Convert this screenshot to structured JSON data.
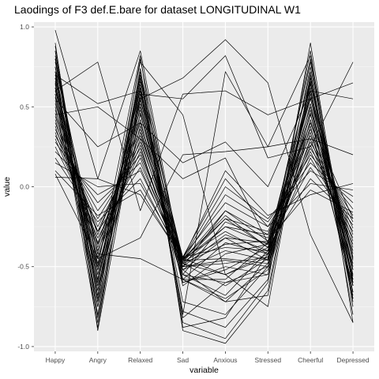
{
  "chart_data": {
    "type": "line",
    "title": "Laodings of F3 def.E.bare for dataset LONGITUDINAL W1",
    "xlabel": "variable",
    "ylabel": "value",
    "categories": [
      "Happy",
      "Angry",
      "Relaxed",
      "Sad",
      "Anxious",
      "Stressed",
      "Cheerful",
      "Depressed"
    ],
    "ylim": [
      -1.03,
      1.03
    ],
    "yticks": [
      1.0,
      0.5,
      0.0,
      -0.5,
      -1.0
    ],
    "ytick_labels": [
      "1.0",
      "0.5",
      "0.0",
      "-0.5",
      "-1.0"
    ],
    "grid": true,
    "legend": "none",
    "colors": {
      "panel": "#ebebeb",
      "grid_major": "#ffffff",
      "grid_minor": "#f5f5f5",
      "line": "#000000"
    },
    "series": [
      {
        "values": [
          0.98,
          0.05,
          0.85,
          -0.52,
          -0.72,
          -0.48,
          0.85,
          -0.85
        ]
      },
      {
        "values": [
          0.88,
          -0.72,
          0.8,
          -0.55,
          -0.68,
          -0.4,
          0.78,
          -0.62
        ]
      },
      {
        "values": [
          0.85,
          -0.65,
          0.72,
          -0.48,
          -0.62,
          -0.45,
          0.72,
          -0.7
        ]
      },
      {
        "values": [
          0.82,
          -0.8,
          0.7,
          -0.58,
          -0.58,
          -0.35,
          0.68,
          -0.55
        ]
      },
      {
        "values": [
          0.78,
          -0.55,
          0.66,
          -0.45,
          -0.55,
          -0.42,
          0.64,
          -0.5
        ]
      },
      {
        "values": [
          0.75,
          -0.85,
          0.62,
          -0.6,
          -0.52,
          -0.38,
          0.62,
          -0.72
        ]
      },
      {
        "values": [
          0.72,
          -0.48,
          0.6,
          -0.5,
          -0.48,
          -0.44,
          0.6,
          -0.46
        ]
      },
      {
        "values": [
          0.7,
          -0.6,
          0.58,
          -0.46,
          -0.45,
          -0.48,
          0.58,
          -0.58
        ]
      },
      {
        "values": [
          0.68,
          -0.7,
          0.56,
          -0.62,
          -0.42,
          -0.36,
          0.56,
          -0.66
        ]
      },
      {
        "values": [
          0.66,
          -0.42,
          0.54,
          -0.44,
          -0.38,
          -0.4,
          0.55,
          -0.42
        ]
      },
      {
        "values": [
          0.64,
          -0.52,
          0.52,
          -0.55,
          -0.6,
          -0.5,
          0.52,
          -0.6
        ]
      },
      {
        "values": [
          0.62,
          -0.65,
          0.5,
          -0.48,
          -0.36,
          -0.34,
          0.5,
          -0.52
        ]
      },
      {
        "values": [
          0.6,
          -0.38,
          0.48,
          -0.52,
          -0.32,
          -0.46,
          0.48,
          -0.44
        ]
      },
      {
        "values": [
          0.58,
          -0.75,
          0.46,
          -0.58,
          -0.7,
          -0.52,
          0.46,
          -0.68
        ]
      },
      {
        "values": [
          0.56,
          -0.45,
          0.45,
          -0.45,
          -0.28,
          -0.42,
          0.45,
          -0.38
        ]
      },
      {
        "values": [
          0.54,
          -0.58,
          0.42,
          -0.6,
          -0.5,
          -0.55,
          0.42,
          -0.56
        ]
      },
      {
        "values": [
          0.52,
          -0.35,
          0.4,
          -0.46,
          -0.25,
          -0.3,
          0.4,
          -0.34
        ]
      },
      {
        "values": [
          0.5,
          -0.62,
          0.38,
          -0.5,
          -0.46,
          -0.5,
          0.38,
          -0.62
        ]
      },
      {
        "values": [
          0.48,
          -0.3,
          0.36,
          -0.55,
          -0.22,
          -0.32,
          0.36,
          -0.3
        ]
      },
      {
        "values": [
          0.46,
          -0.5,
          0.34,
          -0.48,
          -0.55,
          -0.44,
          0.34,
          -0.48
        ]
      },
      {
        "values": [
          0.44,
          -0.28,
          0.32,
          -0.45,
          -0.2,
          -0.28,
          0.32,
          -0.26
        ]
      },
      {
        "values": [
          0.42,
          -0.44,
          0.3,
          -0.52,
          -0.4,
          -0.46,
          0.3,
          -0.4
        ]
      },
      {
        "values": [
          0.4,
          -0.25,
          0.28,
          -0.46,
          -0.18,
          -0.38,
          0.28,
          -0.22
        ]
      },
      {
        "values": [
          0.38,
          -0.4,
          0.26,
          -0.58,
          -0.35,
          -0.42,
          0.26,
          -0.36
        ]
      },
      {
        "values": [
          0.36,
          -0.2,
          0.24,
          -0.5,
          -0.15,
          -0.3,
          0.24,
          -0.18
        ]
      },
      {
        "values": [
          0.34,
          -0.36,
          0.22,
          -0.47,
          -0.32,
          -0.35,
          0.22,
          -0.32
        ]
      },
      {
        "values": [
          0.32,
          -0.15,
          0.2,
          -0.44,
          -0.1,
          -0.25,
          0.2,
          -0.14
        ]
      },
      {
        "values": [
          0.3,
          -0.32,
          0.18,
          -0.5,
          -0.3,
          -0.4,
          0.18,
          -0.28
        ]
      },
      {
        "values": [
          0.28,
          -0.1,
          0.15,
          -0.46,
          -0.05,
          -0.22,
          0.15,
          -0.1
        ]
      },
      {
        "values": [
          0.25,
          -0.28,
          0.12,
          -0.48,
          -0.25,
          -0.36,
          0.12,
          -0.24
        ]
      },
      {
        "values": [
          0.22,
          -0.05,
          0.1,
          -0.45,
          0.0,
          -0.2,
          0.1,
          -0.06
        ]
      },
      {
        "values": [
          0.18,
          -0.22,
          0.05,
          -0.47,
          -0.2,
          -0.38,
          0.05,
          -0.2
        ]
      },
      {
        "values": [
          0.15,
          0.0,
          0.02,
          -0.44,
          0.05,
          -0.25,
          0.02,
          -0.02
        ]
      },
      {
        "values": [
          0.1,
          -0.18,
          -0.02,
          -0.46,
          -0.15,
          -0.34,
          -0.02,
          -0.16
        ]
      },
      {
        "values": [
          0.06,
          0.05,
          -0.05,
          -0.45,
          0.1,
          -0.18,
          -0.05,
          0.02
        ]
      },
      {
        "values": [
          0.08,
          -0.45,
          -0.32,
          0.2,
          0.22,
          0.25,
          0.3,
          0.2
        ]
      },
      {
        "values": [
          0.9,
          -0.9,
          0.55,
          0.68,
          0.92,
          0.65,
          -0.3,
          -0.85
        ]
      },
      {
        "values": [
          0.85,
          -0.82,
          0.58,
          0.55,
          0.82,
          0.18,
          0.25,
          0.78
        ]
      },
      {
        "values": [
          0.6,
          0.78,
          -0.15,
          0.58,
          0.6,
          0.45,
          0.55,
          0.65
        ]
      },
      {
        "values": [
          0.7,
          0.52,
          0.6,
          -0.8,
          0.72,
          0.25,
          0.82,
          -0.6
        ]
      },
      {
        "values": [
          0.55,
          0.25,
          0.4,
          0.15,
          0.28,
          0.0,
          0.6,
          0.55
        ]
      },
      {
        "values": [
          0.45,
          0.5,
          0.3,
          0.05,
          0.18,
          -0.35,
          0.4,
          -0.2
        ]
      },
      {
        "values": [
          0.75,
          -0.42,
          -0.45,
          -0.58,
          -0.72,
          -0.68,
          0.65,
          -0.45
        ]
      },
      {
        "values": [
          0.8,
          -0.6,
          0.78,
          0.45,
          -0.55,
          -0.75,
          0.7,
          -0.8
        ]
      },
      {
        "values": [
          0.65,
          -0.88,
          0.68,
          -0.85,
          -0.95,
          -0.6,
          0.9,
          -0.75
        ]
      },
      {
        "values": [
          0.72,
          -0.75,
          0.74,
          -0.88,
          -0.82,
          -0.42,
          0.8,
          -0.7
        ]
      },
      {
        "values": [
          0.68,
          -0.68,
          0.7,
          -0.82,
          -0.6,
          -0.55,
          0.75,
          -0.62
        ]
      },
      {
        "values": [
          0.8,
          -0.5,
          0.82,
          -0.9,
          -0.98,
          -0.65,
          0.68,
          -0.52
        ]
      },
      {
        "values": [
          0.62,
          -0.58,
          0.64,
          -0.78,
          -0.88,
          -0.58,
          0.66,
          -0.66
        ]
      },
      {
        "values": [
          0.58,
          -0.55,
          0.62,
          -0.72,
          -0.8,
          -0.5,
          0.6,
          -0.58
        ]
      }
    ]
  }
}
